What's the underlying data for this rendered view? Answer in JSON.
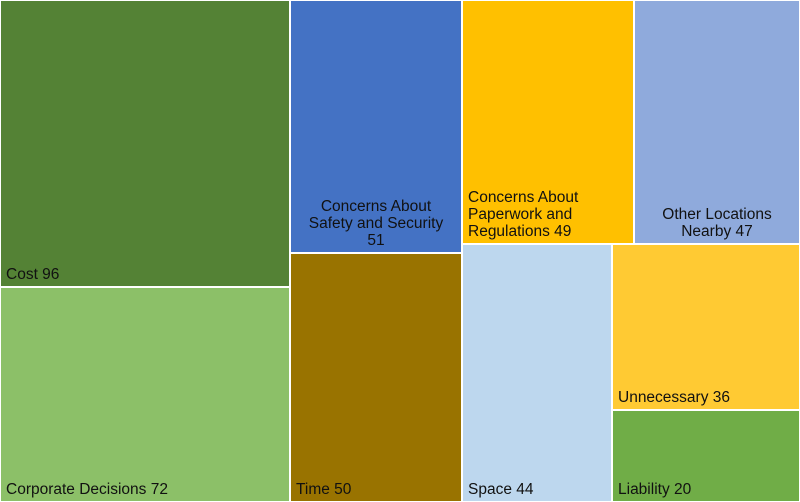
{
  "chart_data": {
    "type": "treemap",
    "title": "",
    "items": [
      {
        "name": "Cost",
        "value": 96,
        "color": "#548235",
        "label_lines": [
          "Cost 96"
        ],
        "label_align": "left"
      },
      {
        "name": "Corporate Decisions",
        "value": 72,
        "color": "#8CC068",
        "label_lines": [
          "Corporate Decisions 72"
        ],
        "label_align": "left"
      },
      {
        "name": "Concerns About Safety and Security",
        "value": 51,
        "color": "#4472C4",
        "label_lines": [
          "Concerns About",
          "Safety and Security",
          "51"
        ],
        "label_align": "center"
      },
      {
        "name": "Time",
        "value": 50,
        "color": "#997300",
        "label_lines": [
          "Time 50"
        ],
        "label_align": "left"
      },
      {
        "name": "Concerns About Paperwork and Regulations",
        "value": 49,
        "color": "#FFC000",
        "label_lines": [
          "Concerns About",
          "Paperwork and",
          "Regulations 49"
        ],
        "label_align": "left"
      },
      {
        "name": "Other Locations Nearby",
        "value": 47,
        "color": "#8FAADC",
        "label_lines": [
          "Other Locations",
          "Nearby 47"
        ],
        "label_align": "center"
      },
      {
        "name": "Space",
        "value": 44,
        "color": "#BDD7EE",
        "label_lines": [
          "Space 44"
        ],
        "label_align": "left"
      },
      {
        "name": "Unnecessary",
        "value": 36,
        "color": "#FFCA33",
        "label_lines": [
          "Unnecessary 36"
        ],
        "label_align": "left"
      },
      {
        "name": "Liability",
        "value": 20,
        "color": "#70AD47",
        "label_lines": [
          "Liability 20"
        ],
        "label_align": "left"
      }
    ]
  }
}
